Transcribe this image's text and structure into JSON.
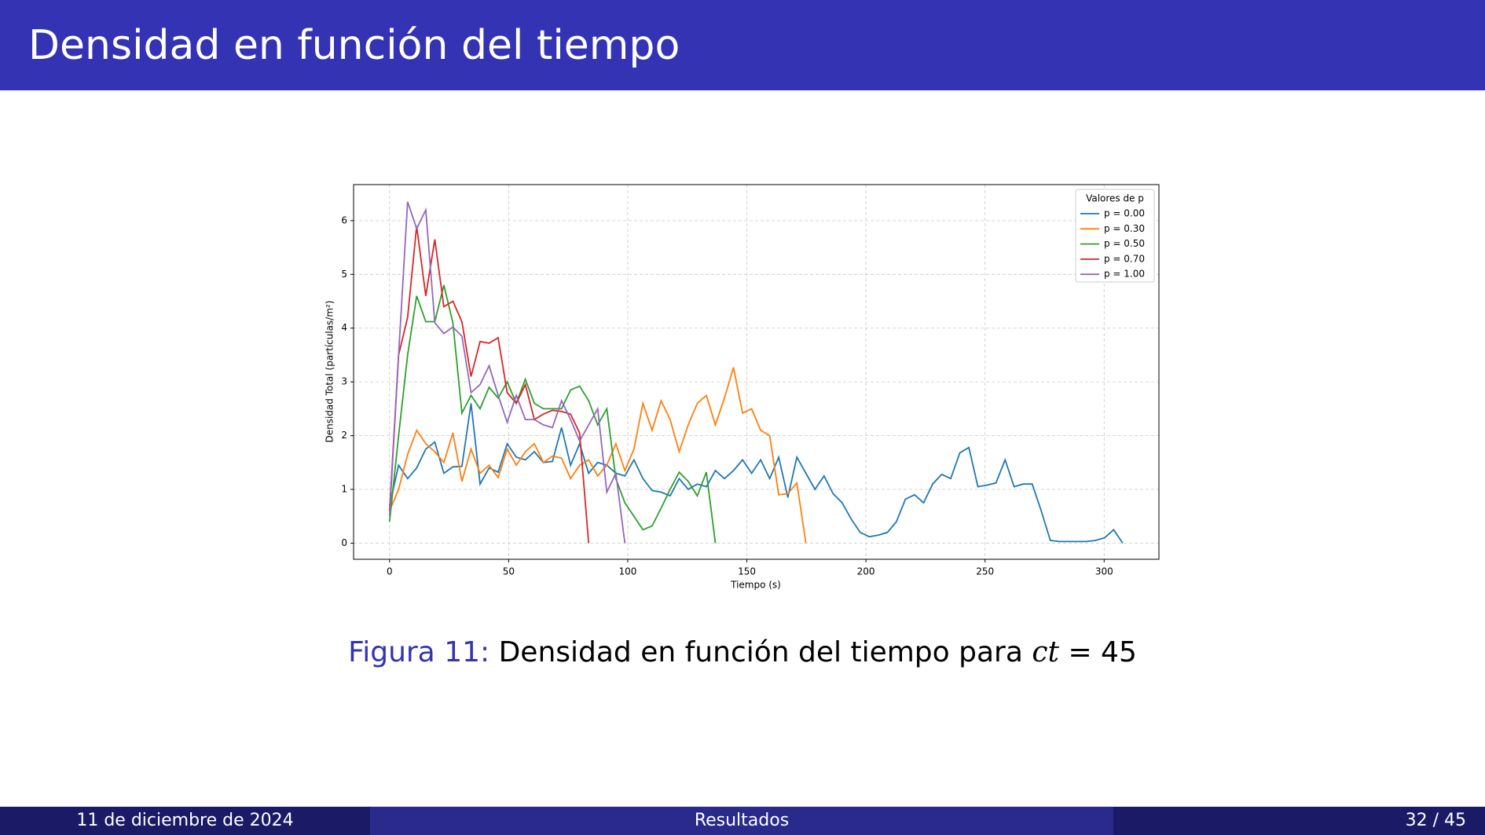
{
  "header": {
    "title": "Densidad en función del tiempo"
  },
  "chart_data": {
    "type": "line",
    "xlabel": "Tiempo (s)",
    "ylabel": "Densidad Total (partículas/m²)",
    "x": [
      0,
      3.8,
      7.6,
      11.4,
      15.2,
      19,
      22.8,
      26.6,
      30.4,
      34.2,
      38,
      41.8,
      45.6,
      49.4,
      53.2,
      57,
      60.8,
      64.6,
      68.4,
      72.2,
      76,
      79.8,
      83.6,
      87.4,
      91.2,
      95,
      98.8,
      102.6,
      106.4,
      110.2,
      114,
      117.8,
      121.6,
      125.4,
      129.2,
      133,
      136.8,
      140.6,
      144.4,
      148.2,
      152,
      155.8,
      159.6,
      163.4,
      167.2,
      171,
      174.8,
      178.6,
      182.4,
      186.2,
      190,
      193.8,
      197.6,
      201.4,
      205.2,
      209,
      212.8,
      216.6,
      220.4,
      224.2,
      228,
      231.8,
      235.6,
      239.4,
      243.2,
      247,
      250.8,
      254.6,
      258.4,
      262.2,
      266,
      269.8,
      273.6,
      277.4,
      281.2,
      285,
      288.8,
      292.6,
      296.4,
      300.2,
      304,
      307.8
    ],
    "series": [
      {
        "name": "p = 0.00",
        "color": "#1f77b4",
        "values": [
          0.7,
          1.45,
          1.2,
          1.4,
          1.75,
          1.88,
          1.3,
          1.42,
          1.43,
          2.6,
          1.1,
          1.4,
          1.32,
          1.85,
          1.6,
          1.55,
          1.7,
          1.5,
          1.52,
          2.15,
          1.45,
          1.85,
          1.3,
          1.5,
          1.45,
          1.3,
          1.25,
          1.55,
          1.2,
          0.98,
          0.95,
          0.88,
          1.2,
          1.0,
          1.1,
          1.05,
          1.35,
          1.2,
          1.35,
          1.55,
          1.3,
          1.55,
          1.2,
          1.6,
          0.85,
          1.6,
          1.3,
          1.0,
          1.25,
          0.92,
          0.75,
          0.45,
          0.2,
          0.12,
          0.15,
          0.2,
          0.4,
          0.82,
          0.9,
          0.75,
          1.1,
          1.28,
          1.2,
          1.68,
          1.78,
          1.05,
          1.08,
          1.12,
          1.55,
          1.05,
          1.1,
          1.1,
          0.6,
          0.05,
          0.03,
          0.03,
          0.03,
          0.03,
          0.05,
          0.1,
          0.25,
          0.0
        ]
      },
      {
        "name": "p = 0.30",
        "color": "#ff7f0e",
        "values": [
          0.6,
          1.0,
          1.65,
          2.1,
          1.85,
          1.7,
          1.5,
          2.05,
          1.15,
          1.75,
          1.3,
          1.45,
          1.22,
          1.75,
          1.45,
          1.7,
          1.85,
          1.5,
          1.62,
          1.58,
          1.2,
          1.45,
          1.55,
          1.25,
          1.45,
          1.85,
          1.35,
          1.75,
          2.6,
          2.1,
          2.65,
          2.3,
          1.7,
          2.2,
          2.6,
          2.75,
          2.2,
          2.7,
          3.27,
          2.42,
          2.5,
          2.1,
          2.0,
          0.9,
          0.92,
          1.12,
          0.0,
          null,
          null,
          null,
          null,
          null,
          null,
          null,
          null,
          null,
          null,
          null,
          null,
          null,
          null,
          null,
          null,
          null,
          null,
          null,
          null,
          null,
          null,
          null,
          null,
          null,
          null,
          null,
          null,
          null,
          null,
          null,
          null,
          null,
          null,
          null
        ]
      },
      {
        "name": "p = 0.50",
        "color": "#2ca02c",
        "values": [
          0.4,
          2.0,
          3.5,
          4.6,
          4.12,
          4.12,
          4.8,
          4.1,
          2.42,
          2.75,
          2.5,
          2.9,
          2.7,
          3.0,
          2.6,
          3.05,
          2.6,
          2.5,
          2.5,
          2.5,
          2.85,
          2.92,
          2.65,
          2.2,
          2.5,
          1.2,
          0.75,
          0.5,
          0.25,
          0.32,
          0.65,
          1.0,
          1.32,
          1.15,
          0.88,
          1.32,
          0.0,
          null,
          null,
          null,
          null,
          null,
          null,
          null,
          null,
          null,
          null,
          null,
          null,
          null,
          null,
          null,
          null,
          null,
          null,
          null,
          null,
          null,
          null,
          null,
          null,
          null,
          null,
          null,
          null,
          null,
          null,
          null,
          null,
          null,
          null,
          null,
          null,
          null,
          null,
          null,
          null,
          null,
          null,
          null,
          null,
          null
        ]
      },
      {
        "name": "p = 0.70",
        "color": "#d62728",
        "values": [
          0.6,
          3.5,
          4.2,
          5.9,
          4.6,
          5.65,
          4.4,
          4.5,
          4.12,
          3.1,
          3.75,
          3.72,
          3.82,
          2.8,
          2.6,
          2.95,
          2.3,
          2.4,
          2.47,
          2.45,
          2.4,
          2.05,
          0.0,
          null,
          null,
          null,
          null,
          null,
          null,
          null,
          null,
          null,
          null,
          null,
          null,
          null,
          null,
          null,
          null,
          null,
          null,
          null,
          null,
          null,
          null,
          null,
          null,
          null,
          null,
          null,
          null,
          null,
          null,
          null,
          null,
          null,
          null,
          null,
          null,
          null,
          null,
          null,
          null,
          null,
          null,
          null,
          null,
          null,
          null,
          null,
          null,
          null,
          null,
          null,
          null,
          null,
          null,
          null,
          null,
          null,
          null,
          null
        ]
      },
      {
        "name": "p = 1.00",
        "color": "#9467bd",
        "values": [
          0.5,
          3.5,
          6.35,
          5.85,
          6.2,
          4.1,
          3.9,
          4.02,
          3.85,
          2.8,
          2.95,
          3.3,
          2.75,
          2.25,
          2.75,
          2.3,
          2.3,
          2.2,
          2.15,
          2.65,
          2.3,
          1.9,
          2.2,
          2.5,
          0.95,
          1.3,
          0.0,
          null,
          null,
          null,
          null,
          null,
          null,
          null,
          null,
          null,
          null,
          null,
          null,
          null,
          null,
          null,
          null,
          null,
          null,
          null,
          null,
          null,
          null,
          null,
          null,
          null,
          null,
          null,
          null,
          null,
          null,
          null,
          null,
          null,
          null,
          null,
          null,
          null,
          null,
          null,
          null,
          null,
          null,
          null,
          null,
          null,
          null,
          null,
          null,
          null,
          null,
          null,
          null,
          null,
          null,
          null
        ]
      }
    ],
    "xlim": [
      -15.1,
      323
    ],
    "ylim": [
      -0.3,
      6.67
    ],
    "xticks": [
      0,
      50,
      100,
      150,
      200,
      250,
      300
    ],
    "yticks": [
      0,
      1,
      2,
      3,
      4,
      5,
      6
    ],
    "grid": true,
    "legend_title": "Valores de p",
    "legend": "upper right"
  },
  "caption": {
    "label": "Figura 11:",
    "text": "Densidad en función del tiempo para",
    "math_var": "ct",
    "math_rest": "= 45"
  },
  "footer": {
    "date": "11 de diciembre de 2024",
    "section": "Resultados",
    "page": "32 / 45"
  }
}
